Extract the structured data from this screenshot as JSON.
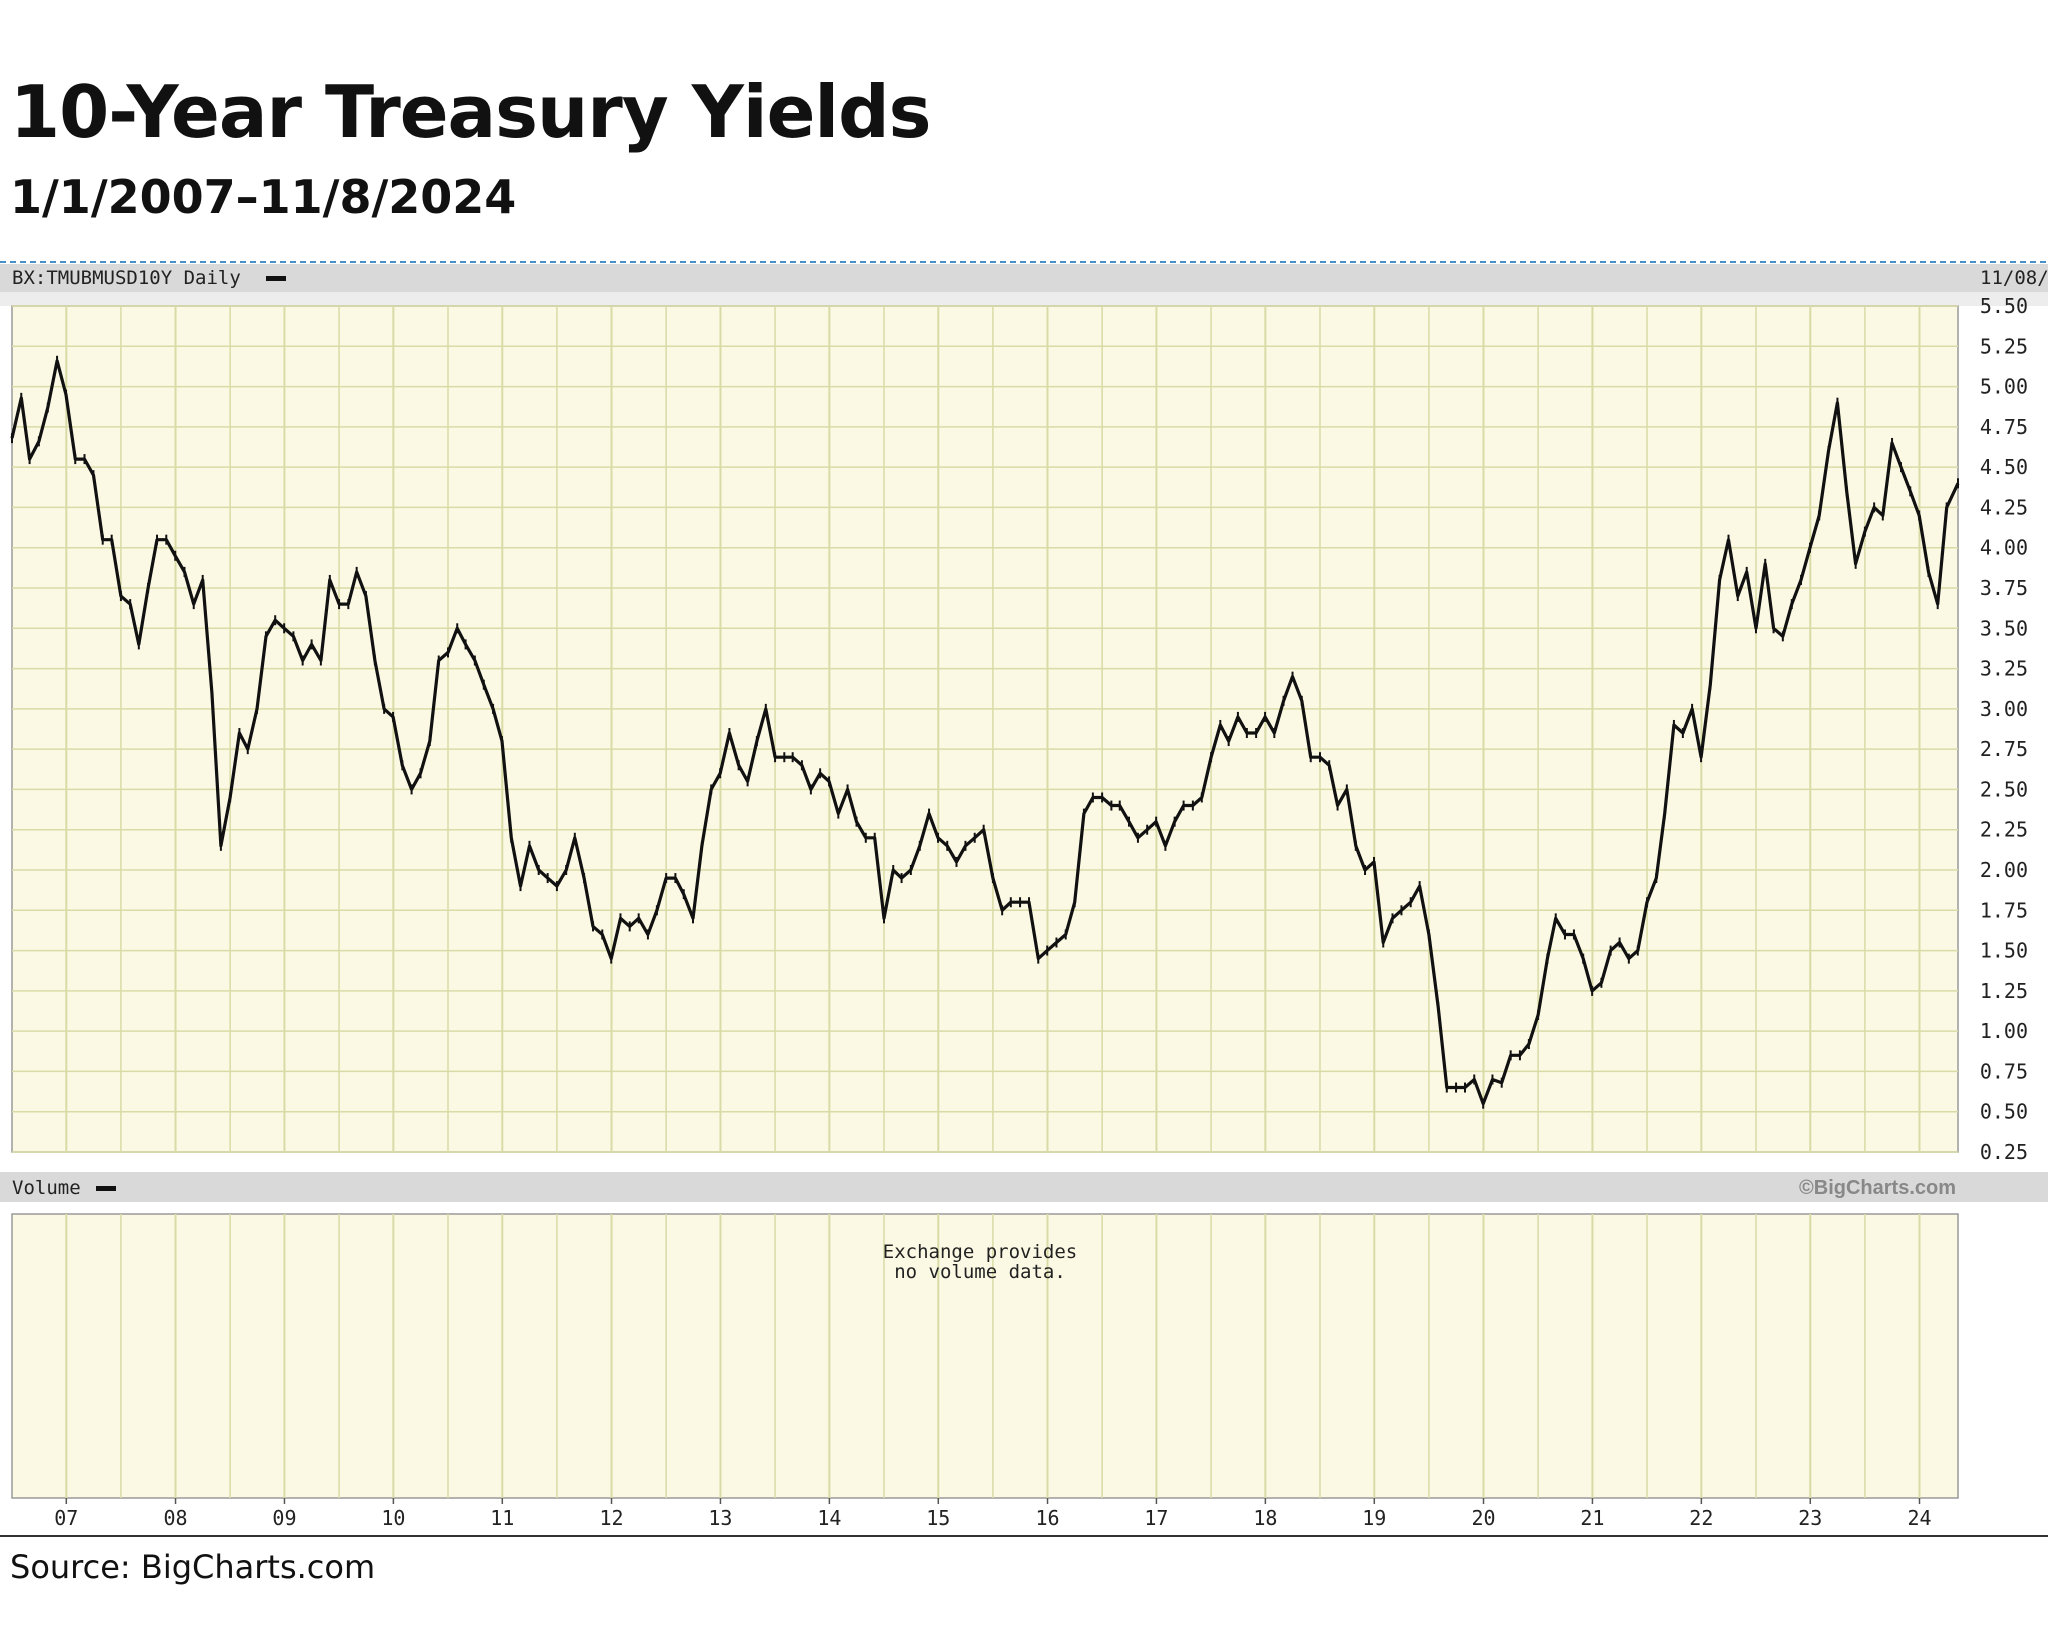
{
  "header": {
    "title": "10-Year Treasury Yields",
    "subtitle": "1/1/2007–11/8/2024"
  },
  "panel": {
    "symbol_label": "BX:TMUBMUSD10Y Daily",
    "end_date_label": "11/08/",
    "volume_label": "Volume",
    "watermark": "©BigCharts.com",
    "no_volume_line1": "Exchange provides",
    "no_volume_line2": "no volume data."
  },
  "footer": {
    "source": "Source: BigCharts.com"
  },
  "colors": {
    "plot_background": "#fbf9e4",
    "grid": "#d9dba6",
    "line": "#111111",
    "header_bar": "#d9d9d9"
  },
  "chart_data": {
    "type": "line",
    "title": "10-Year Treasury Yields",
    "subtitle": "1/1/2007–11/8/2024",
    "xlabel": "",
    "ylabel": "",
    "ylim": [
      0.25,
      5.5
    ],
    "xlim": [
      "2007-01-01",
      "2024-11-08"
    ],
    "y_axis_position": "right",
    "y_ticks": [
      "5.50",
      "5.25",
      "5.00",
      "4.75",
      "4.50",
      "4.25",
      "4.00",
      "3.75",
      "3.50",
      "3.25",
      "3.00",
      "2.75",
      "2.50",
      "2.25",
      "2.00",
      "1.75",
      "1.50",
      "1.25",
      "1.00",
      "0.75",
      "0.50",
      "0.25"
    ],
    "x_tick_labels": [
      "07",
      "08",
      "09",
      "10",
      "11",
      "12",
      "13",
      "14",
      "15",
      "16",
      "17",
      "18",
      "19",
      "20",
      "21",
      "22",
      "23",
      "24"
    ],
    "grid": true,
    "series": [
      {
        "points": [
          [
            "2007-01-01",
            4.68
          ],
          [
            "2007-02-01",
            4.93
          ],
          [
            "2007-03-01",
            4.55
          ],
          [
            "2007-04-01",
            4.66
          ],
          [
            "2007-05-01",
            4.87
          ],
          [
            "2007-06-01",
            5.16
          ],
          [
            "2007-07-01",
            4.95
          ],
          [
            "2007-08-01",
            4.55
          ],
          [
            "2007-09-01",
            4.55
          ],
          [
            "2007-10-01",
            4.45
          ],
          [
            "2007-11-01",
            4.05
          ],
          [
            "2007-12-01",
            4.05
          ],
          [
            "2008-01-01",
            3.7
          ],
          [
            "2008-02-01",
            3.65
          ],
          [
            "2008-03-01",
            3.4
          ],
          [
            "2008-04-01",
            3.75
          ],
          [
            "2008-05-01",
            4.05
          ],
          [
            "2008-06-01",
            4.05
          ],
          [
            "2008-07-01",
            3.95
          ],
          [
            "2008-08-01",
            3.85
          ],
          [
            "2008-09-01",
            3.65
          ],
          [
            "2008-10-01",
            3.8
          ],
          [
            "2008-11-01",
            3.1
          ],
          [
            "2008-12-01",
            2.15
          ],
          [
            "2009-01-01",
            2.45
          ],
          [
            "2009-02-01",
            2.85
          ],
          [
            "2009-03-01",
            2.75
          ],
          [
            "2009-04-01",
            3.0
          ],
          [
            "2009-05-01",
            3.45
          ],
          [
            "2009-06-01",
            3.55
          ],
          [
            "2009-07-01",
            3.5
          ],
          [
            "2009-08-01",
            3.45
          ],
          [
            "2009-09-01",
            3.3
          ],
          [
            "2009-10-01",
            3.4
          ],
          [
            "2009-11-01",
            3.3
          ],
          [
            "2009-12-01",
            3.8
          ],
          [
            "2010-01-01",
            3.65
          ],
          [
            "2010-02-01",
            3.65
          ],
          [
            "2010-03-01",
            3.85
          ],
          [
            "2010-04-01",
            3.7
          ],
          [
            "2010-05-01",
            3.3
          ],
          [
            "2010-06-01",
            3.0
          ],
          [
            "2010-07-01",
            2.95
          ],
          [
            "2010-08-01",
            2.65
          ],
          [
            "2010-09-01",
            2.5
          ],
          [
            "2010-10-01",
            2.6
          ],
          [
            "2010-11-01",
            2.8
          ],
          [
            "2010-12-01",
            3.3
          ],
          [
            "2011-01-01",
            3.35
          ],
          [
            "2011-02-01",
            3.5
          ],
          [
            "2011-03-01",
            3.4
          ],
          [
            "2011-04-01",
            3.3
          ],
          [
            "2011-05-01",
            3.15
          ],
          [
            "2011-06-01",
            3.0
          ],
          [
            "2011-07-01",
            2.8
          ],
          [
            "2011-08-01",
            2.2
          ],
          [
            "2011-09-01",
            1.9
          ],
          [
            "2011-10-01",
            2.15
          ],
          [
            "2011-11-01",
            2.0
          ],
          [
            "2011-12-01",
            1.95
          ],
          [
            "2012-01-01",
            1.9
          ],
          [
            "2012-02-01",
            2.0
          ],
          [
            "2012-03-01",
            2.2
          ],
          [
            "2012-04-01",
            1.95
          ],
          [
            "2012-05-01",
            1.65
          ],
          [
            "2012-06-01",
            1.6
          ],
          [
            "2012-07-01",
            1.45
          ],
          [
            "2012-08-01",
            1.7
          ],
          [
            "2012-09-01",
            1.65
          ],
          [
            "2012-10-01",
            1.7
          ],
          [
            "2012-11-01",
            1.6
          ],
          [
            "2012-12-01",
            1.75
          ],
          [
            "2013-01-01",
            1.95
          ],
          [
            "2013-02-01",
            1.95
          ],
          [
            "2013-03-01",
            1.85
          ],
          [
            "2013-04-01",
            1.7
          ],
          [
            "2013-05-01",
            2.15
          ],
          [
            "2013-06-01",
            2.5
          ],
          [
            "2013-07-01",
            2.6
          ],
          [
            "2013-08-01",
            2.85
          ],
          [
            "2013-09-01",
            2.65
          ],
          [
            "2013-10-01",
            2.55
          ],
          [
            "2013-11-01",
            2.8
          ],
          [
            "2013-12-01",
            3.0
          ],
          [
            "2014-01-01",
            2.7
          ],
          [
            "2014-02-01",
            2.7
          ],
          [
            "2014-03-01",
            2.7
          ],
          [
            "2014-04-01",
            2.65
          ],
          [
            "2014-05-01",
            2.5
          ],
          [
            "2014-06-01",
            2.6
          ],
          [
            "2014-07-01",
            2.55
          ],
          [
            "2014-08-01",
            2.35
          ],
          [
            "2014-09-01",
            2.5
          ],
          [
            "2014-10-01",
            2.3
          ],
          [
            "2014-11-01",
            2.2
          ],
          [
            "2014-12-01",
            2.2
          ],
          [
            "2015-01-01",
            1.7
          ],
          [
            "2015-02-01",
            2.0
          ],
          [
            "2015-03-01",
            1.95
          ],
          [
            "2015-04-01",
            2.0
          ],
          [
            "2015-05-01",
            2.15
          ],
          [
            "2015-06-01",
            2.35
          ],
          [
            "2015-07-01",
            2.2
          ],
          [
            "2015-08-01",
            2.15
          ],
          [
            "2015-09-01",
            2.05
          ],
          [
            "2015-10-01",
            2.15
          ],
          [
            "2015-11-01",
            2.2
          ],
          [
            "2015-12-01",
            2.25
          ],
          [
            "2016-01-01",
            1.95
          ],
          [
            "2016-02-01",
            1.75
          ],
          [
            "2016-03-01",
            1.8
          ],
          [
            "2016-04-01",
            1.8
          ],
          [
            "2016-05-01",
            1.8
          ],
          [
            "2016-06-01",
            1.45
          ],
          [
            "2016-07-01",
            1.5
          ],
          [
            "2016-08-01",
            1.55
          ],
          [
            "2016-09-01",
            1.6
          ],
          [
            "2016-10-01",
            1.8
          ],
          [
            "2016-11-01",
            2.35
          ],
          [
            "2016-12-01",
            2.45
          ],
          [
            "2017-01-01",
            2.45
          ],
          [
            "2017-02-01",
            2.4
          ],
          [
            "2017-03-01",
            2.4
          ],
          [
            "2017-04-01",
            2.3
          ],
          [
            "2017-05-01",
            2.2
          ],
          [
            "2017-06-01",
            2.25
          ],
          [
            "2017-07-01",
            2.3
          ],
          [
            "2017-08-01",
            2.15
          ],
          [
            "2017-09-01",
            2.3
          ],
          [
            "2017-10-01",
            2.4
          ],
          [
            "2017-11-01",
            2.4
          ],
          [
            "2017-12-01",
            2.45
          ],
          [
            "2018-01-01",
            2.7
          ],
          [
            "2018-02-01",
            2.9
          ],
          [
            "2018-03-01",
            2.8
          ],
          [
            "2018-04-01",
            2.95
          ],
          [
            "2018-05-01",
            2.85
          ],
          [
            "2018-06-01",
            2.85
          ],
          [
            "2018-07-01",
            2.95
          ],
          [
            "2018-08-01",
            2.85
          ],
          [
            "2018-09-01",
            3.05
          ],
          [
            "2018-10-01",
            3.2
          ],
          [
            "2018-11-01",
            3.05
          ],
          [
            "2018-12-01",
            2.7
          ],
          [
            "2019-01-01",
            2.7
          ],
          [
            "2019-02-01",
            2.65
          ],
          [
            "2019-03-01",
            2.4
          ],
          [
            "2019-04-01",
            2.5
          ],
          [
            "2019-05-01",
            2.15
          ],
          [
            "2019-06-01",
            2.0
          ],
          [
            "2019-07-01",
            2.05
          ],
          [
            "2019-08-01",
            1.55
          ],
          [
            "2019-09-01",
            1.7
          ],
          [
            "2019-10-01",
            1.75
          ],
          [
            "2019-11-01",
            1.8
          ],
          [
            "2019-12-01",
            1.9
          ],
          [
            "2020-01-01",
            1.6
          ],
          [
            "2020-02-01",
            1.15
          ],
          [
            "2020-03-01",
            0.65
          ],
          [
            "2020-04-01",
            0.65
          ],
          [
            "2020-05-01",
            0.65
          ],
          [
            "2020-06-01",
            0.7
          ],
          [
            "2020-07-01",
            0.55
          ],
          [
            "2020-08-01",
            0.7
          ],
          [
            "2020-09-01",
            0.68
          ],
          [
            "2020-10-01",
            0.85
          ],
          [
            "2020-11-01",
            0.85
          ],
          [
            "2020-12-01",
            0.92
          ],
          [
            "2021-01-01",
            1.1
          ],
          [
            "2021-02-01",
            1.45
          ],
          [
            "2021-03-01",
            1.7
          ],
          [
            "2021-04-01",
            1.6
          ],
          [
            "2021-05-01",
            1.6
          ],
          [
            "2021-06-01",
            1.45
          ],
          [
            "2021-07-01",
            1.25
          ],
          [
            "2021-08-01",
            1.3
          ],
          [
            "2021-09-01",
            1.5
          ],
          [
            "2021-10-01",
            1.55
          ],
          [
            "2021-11-01",
            1.45
          ],
          [
            "2021-12-01",
            1.5
          ],
          [
            "2022-01-01",
            1.8
          ],
          [
            "2022-02-01",
            1.95
          ],
          [
            "2022-03-01",
            2.35
          ],
          [
            "2022-04-01",
            2.9
          ],
          [
            "2022-05-01",
            2.85
          ],
          [
            "2022-06-01",
            3.0
          ],
          [
            "2022-07-01",
            2.7
          ],
          [
            "2022-08-01",
            3.15
          ],
          [
            "2022-09-01",
            3.8
          ],
          [
            "2022-10-01",
            4.05
          ],
          [
            "2022-11-01",
            3.7
          ],
          [
            "2022-12-01",
            3.85
          ],
          [
            "2023-01-01",
            3.5
          ],
          [
            "2023-02-01",
            3.9
          ],
          [
            "2023-03-01",
            3.5
          ],
          [
            "2023-04-01",
            3.45
          ],
          [
            "2023-05-01",
            3.65
          ],
          [
            "2023-06-01",
            3.8
          ],
          [
            "2023-07-01",
            4.0
          ],
          [
            "2023-08-01",
            4.2
          ],
          [
            "2023-09-01",
            4.6
          ],
          [
            "2023-10-01",
            4.9
          ],
          [
            "2023-11-01",
            4.35
          ],
          [
            "2023-12-01",
            3.9
          ],
          [
            "2024-01-01",
            4.1
          ],
          [
            "2024-02-01",
            4.25
          ],
          [
            "2024-03-01",
            4.2
          ],
          [
            "2024-04-01",
            4.65
          ],
          [
            "2024-05-01",
            4.5
          ],
          [
            "2024-06-01",
            4.35
          ],
          [
            "2024-07-01",
            4.2
          ],
          [
            "2024-08-01",
            3.85
          ],
          [
            "2024-09-01",
            3.65
          ],
          [
            "2024-10-01",
            4.25
          ],
          [
            "2024-11-08",
            4.4
          ]
        ]
      }
    ]
  }
}
